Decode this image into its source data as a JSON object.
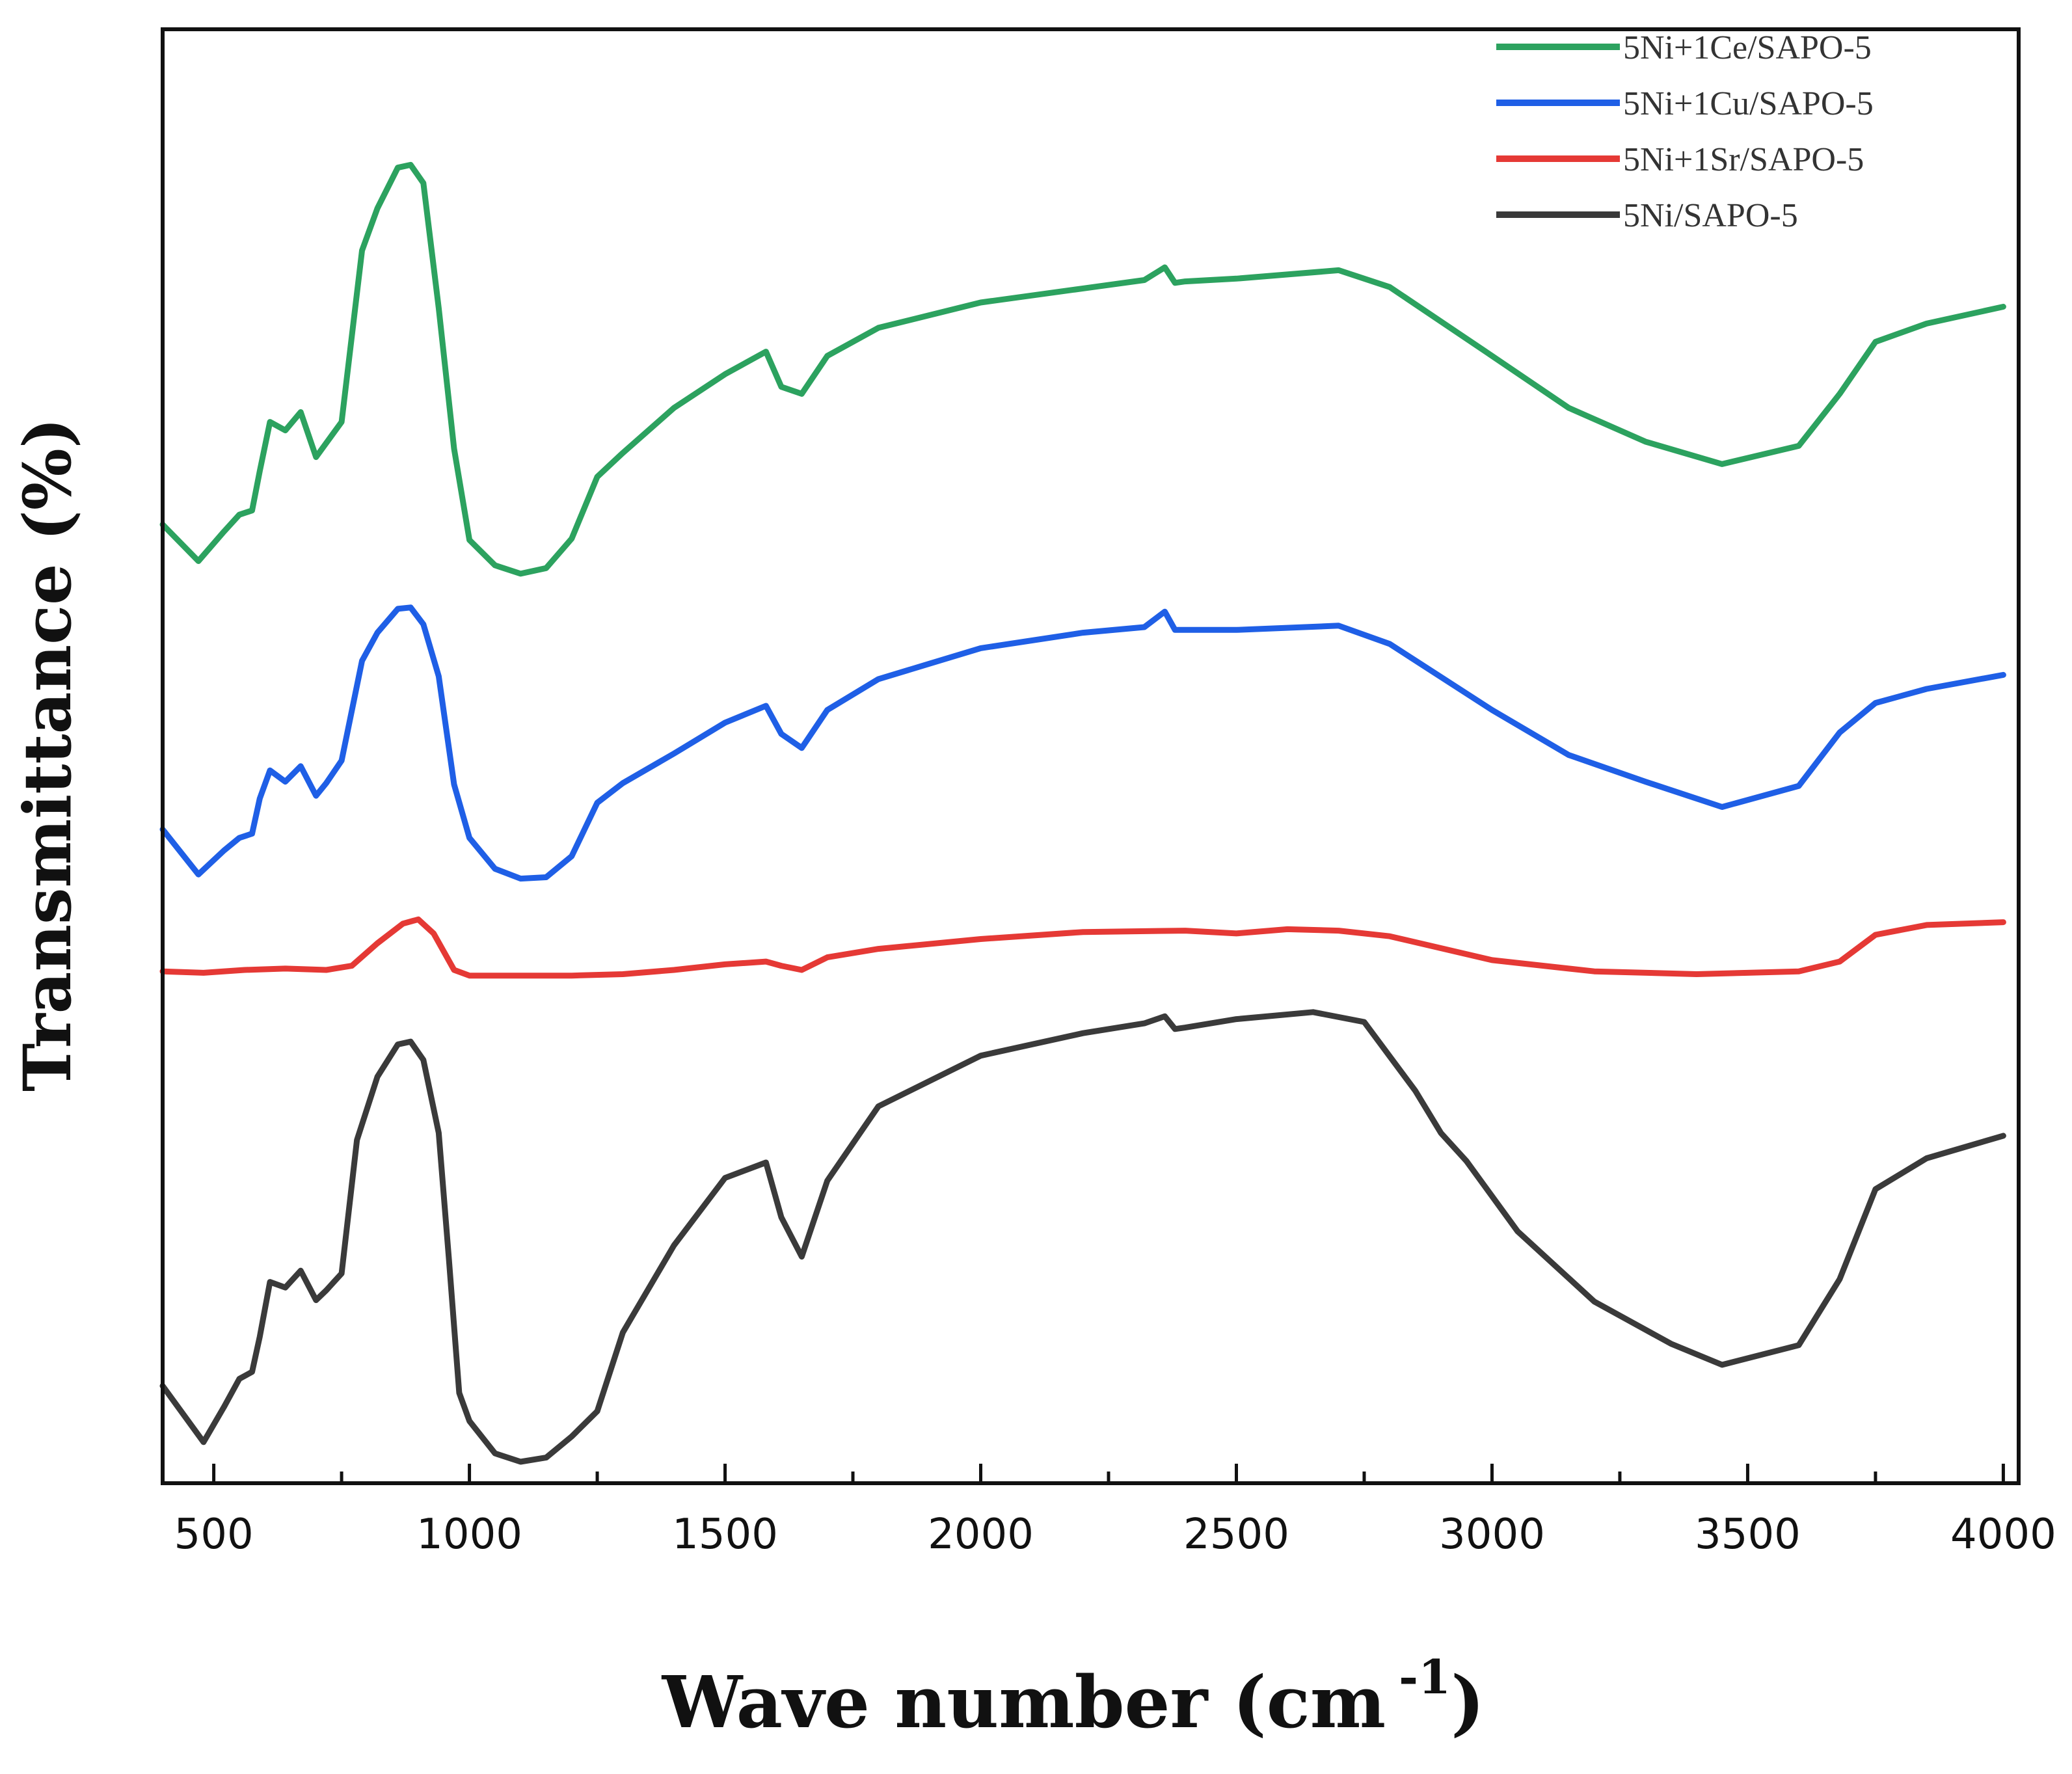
{
  "chart_data": {
    "type": "line",
    "title": "",
    "xlabel": "Wave number (cm",
    "xlabel_superscript": "-1",
    "xlabel_close": ")",
    "ylabel": "Transmittance (%)",
    "xlim": [
      400,
      4030
    ],
    "ylim": [
      0,
      100
    ],
    "yticks_shown": false,
    "grid": false,
    "legend_position": "top-right",
    "xticks": [
      500,
      1000,
      1500,
      2000,
      2500,
      3000,
      3500,
      4000
    ],
    "xtick_labels": [
      "500",
      "1000",
      "1500",
      "2000",
      "2500",
      "3000",
      "3500",
      "4000"
    ],
    "series": [
      {
        "name": "5Ni+1Ce/SAPO-5",
        "color": "#2ca25f",
        "x": [
          400,
          470,
          520,
          550,
          575,
          590,
          610,
          640,
          670,
          700,
          720,
          750,
          790,
          820,
          860,
          885,
          910,
          940,
          970,
          1000,
          1050,
          1100,
          1150,
          1200,
          1250,
          1300,
          1400,
          1500,
          1580,
          1610,
          1650,
          1700,
          1800,
          2000,
          2200,
          2320,
          2360,
          2380,
          2400,
          2500,
          2700,
          2800,
          3000,
          3150,
          3300,
          3450,
          3600,
          3680,
          3750,
          3850,
          4000
        ],
        "y": [
          67.3,
          64.7,
          66.8,
          68.0,
          68.3,
          71.1,
          74.6,
          74.0,
          75.3,
          72.1,
          73.1,
          74.6,
          86.8,
          89.8,
          92.7,
          92.9,
          91.6,
          82.7,
          72.7,
          66.2,
          64.4,
          63.8,
          64.2,
          66.3,
          70.7,
          72.4,
          75.6,
          78.0,
          79.6,
          77.1,
          76.6,
          79.3,
          81.3,
          83.1,
          84.1,
          84.7,
          85.6,
          84.5,
          84.6,
          84.8,
          85.4,
          84.2,
          79.3,
          75.6,
          73.2,
          71.6,
          72.9,
          76.6,
          80.3,
          81.6,
          82.8
        ]
      },
      {
        "name": "5Ni+1Cu/SAPO-5",
        "color": "#1f5fe6",
        "x": [
          400,
          470,
          520,
          550,
          575,
          590,
          610,
          640,
          670,
          700,
          720,
          750,
          790,
          820,
          860,
          885,
          910,
          940,
          970,
          1000,
          1050,
          1100,
          1150,
          1200,
          1250,
          1300,
          1400,
          1500,
          1580,
          1610,
          1650,
          1700,
          1800,
          2000,
          2200,
          2320,
          2360,
          2380,
          2400,
          2500,
          2700,
          2800,
          3000,
          3150,
          3300,
          3450,
          3600,
          3680,
          3750,
          3850,
          4000
        ],
        "y": [
          45.6,
          42.4,
          44.1,
          45.0,
          45.3,
          47.8,
          49.8,
          49.0,
          50.1,
          48.0,
          48.9,
          50.5,
          57.6,
          59.6,
          61.3,
          61.4,
          60.2,
          56.5,
          48.8,
          45.0,
          42.8,
          42.1,
          42.2,
          43.7,
          47.5,
          48.9,
          51.0,
          53.2,
          54.4,
          52.4,
          51.4,
          54.1,
          56.3,
          58.5,
          59.6,
          60.0,
          61.1,
          59.8,
          59.8,
          59.8,
          60.1,
          58.8,
          54.1,
          50.9,
          49.0,
          47.2,
          48.7,
          52.5,
          54.6,
          55.6,
          56.6
        ]
      },
      {
        "name": "5Ni+1Sr/SAPO-5",
        "color": "#e53935",
        "x": [
          400,
          480,
          560,
          640,
          720,
          770,
          820,
          870,
          900,
          930,
          970,
          1000,
          1100,
          1200,
          1300,
          1400,
          1500,
          1580,
          1610,
          1650,
          1700,
          1800,
          2000,
          2200,
          2400,
          2500,
          2600,
          2700,
          2800,
          3000,
          3200,
          3400,
          3500,
          3600,
          3680,
          3750,
          3850,
          4000
        ],
        "y": [
          35.5,
          35.4,
          35.6,
          35.7,
          35.6,
          35.9,
          37.5,
          38.9,
          39.2,
          38.2,
          35.6,
          35.2,
          35.2,
          35.2,
          35.3,
          35.6,
          36.0,
          36.2,
          35.9,
          35.6,
          36.5,
          37.1,
          37.8,
          38.3,
          38.4,
          38.2,
          38.5,
          38.4,
          38.0,
          36.3,
          35.5,
          35.3,
          35.4,
          35.5,
          36.2,
          38.1,
          38.8,
          39.0
        ]
      },
      {
        "name": "5Ni/SAPO-5",
        "color": "#3a3a3a",
        "x": [
          400,
          480,
          520,
          550,
          575,
          590,
          610,
          640,
          670,
          700,
          720,
          750,
          780,
          820,
          860,
          885,
          910,
          940,
          960,
          980,
          1000,
          1050,
          1100,
          1150,
          1200,
          1250,
          1300,
          1400,
          1500,
          1580,
          1610,
          1650,
          1700,
          1800,
          2000,
          2200,
          2320,
          2360,
          2380,
          2400,
          2500,
          2650,
          2750,
          2850,
          2900,
          2950,
          3050,
          3200,
          3350,
          3450,
          3600,
          3680,
          3750,
          3850,
          4000
        ],
        "y": [
          6.0,
          2.0,
          4.5,
          6.5,
          7.0,
          9.5,
          13.4,
          13.0,
          14.2,
          12.1,
          12.8,
          14.0,
          23.5,
          28.0,
          30.3,
          30.5,
          29.2,
          24.0,
          15.0,
          5.5,
          3.5,
          1.2,
          0.6,
          0.9,
          2.4,
          4.2,
          9.8,
          16.0,
          20.8,
          21.9,
          18.0,
          15.2,
          20.6,
          25.9,
          29.5,
          31.1,
          31.8,
          32.3,
          31.4,
          31.5,
          32.1,
          32.6,
          31.9,
          27.0,
          24.0,
          22.0,
          17.0,
          12.0,
          9.0,
          7.5,
          8.9,
          13.6,
          20.0,
          22.2,
          23.8
        ]
      }
    ]
  }
}
